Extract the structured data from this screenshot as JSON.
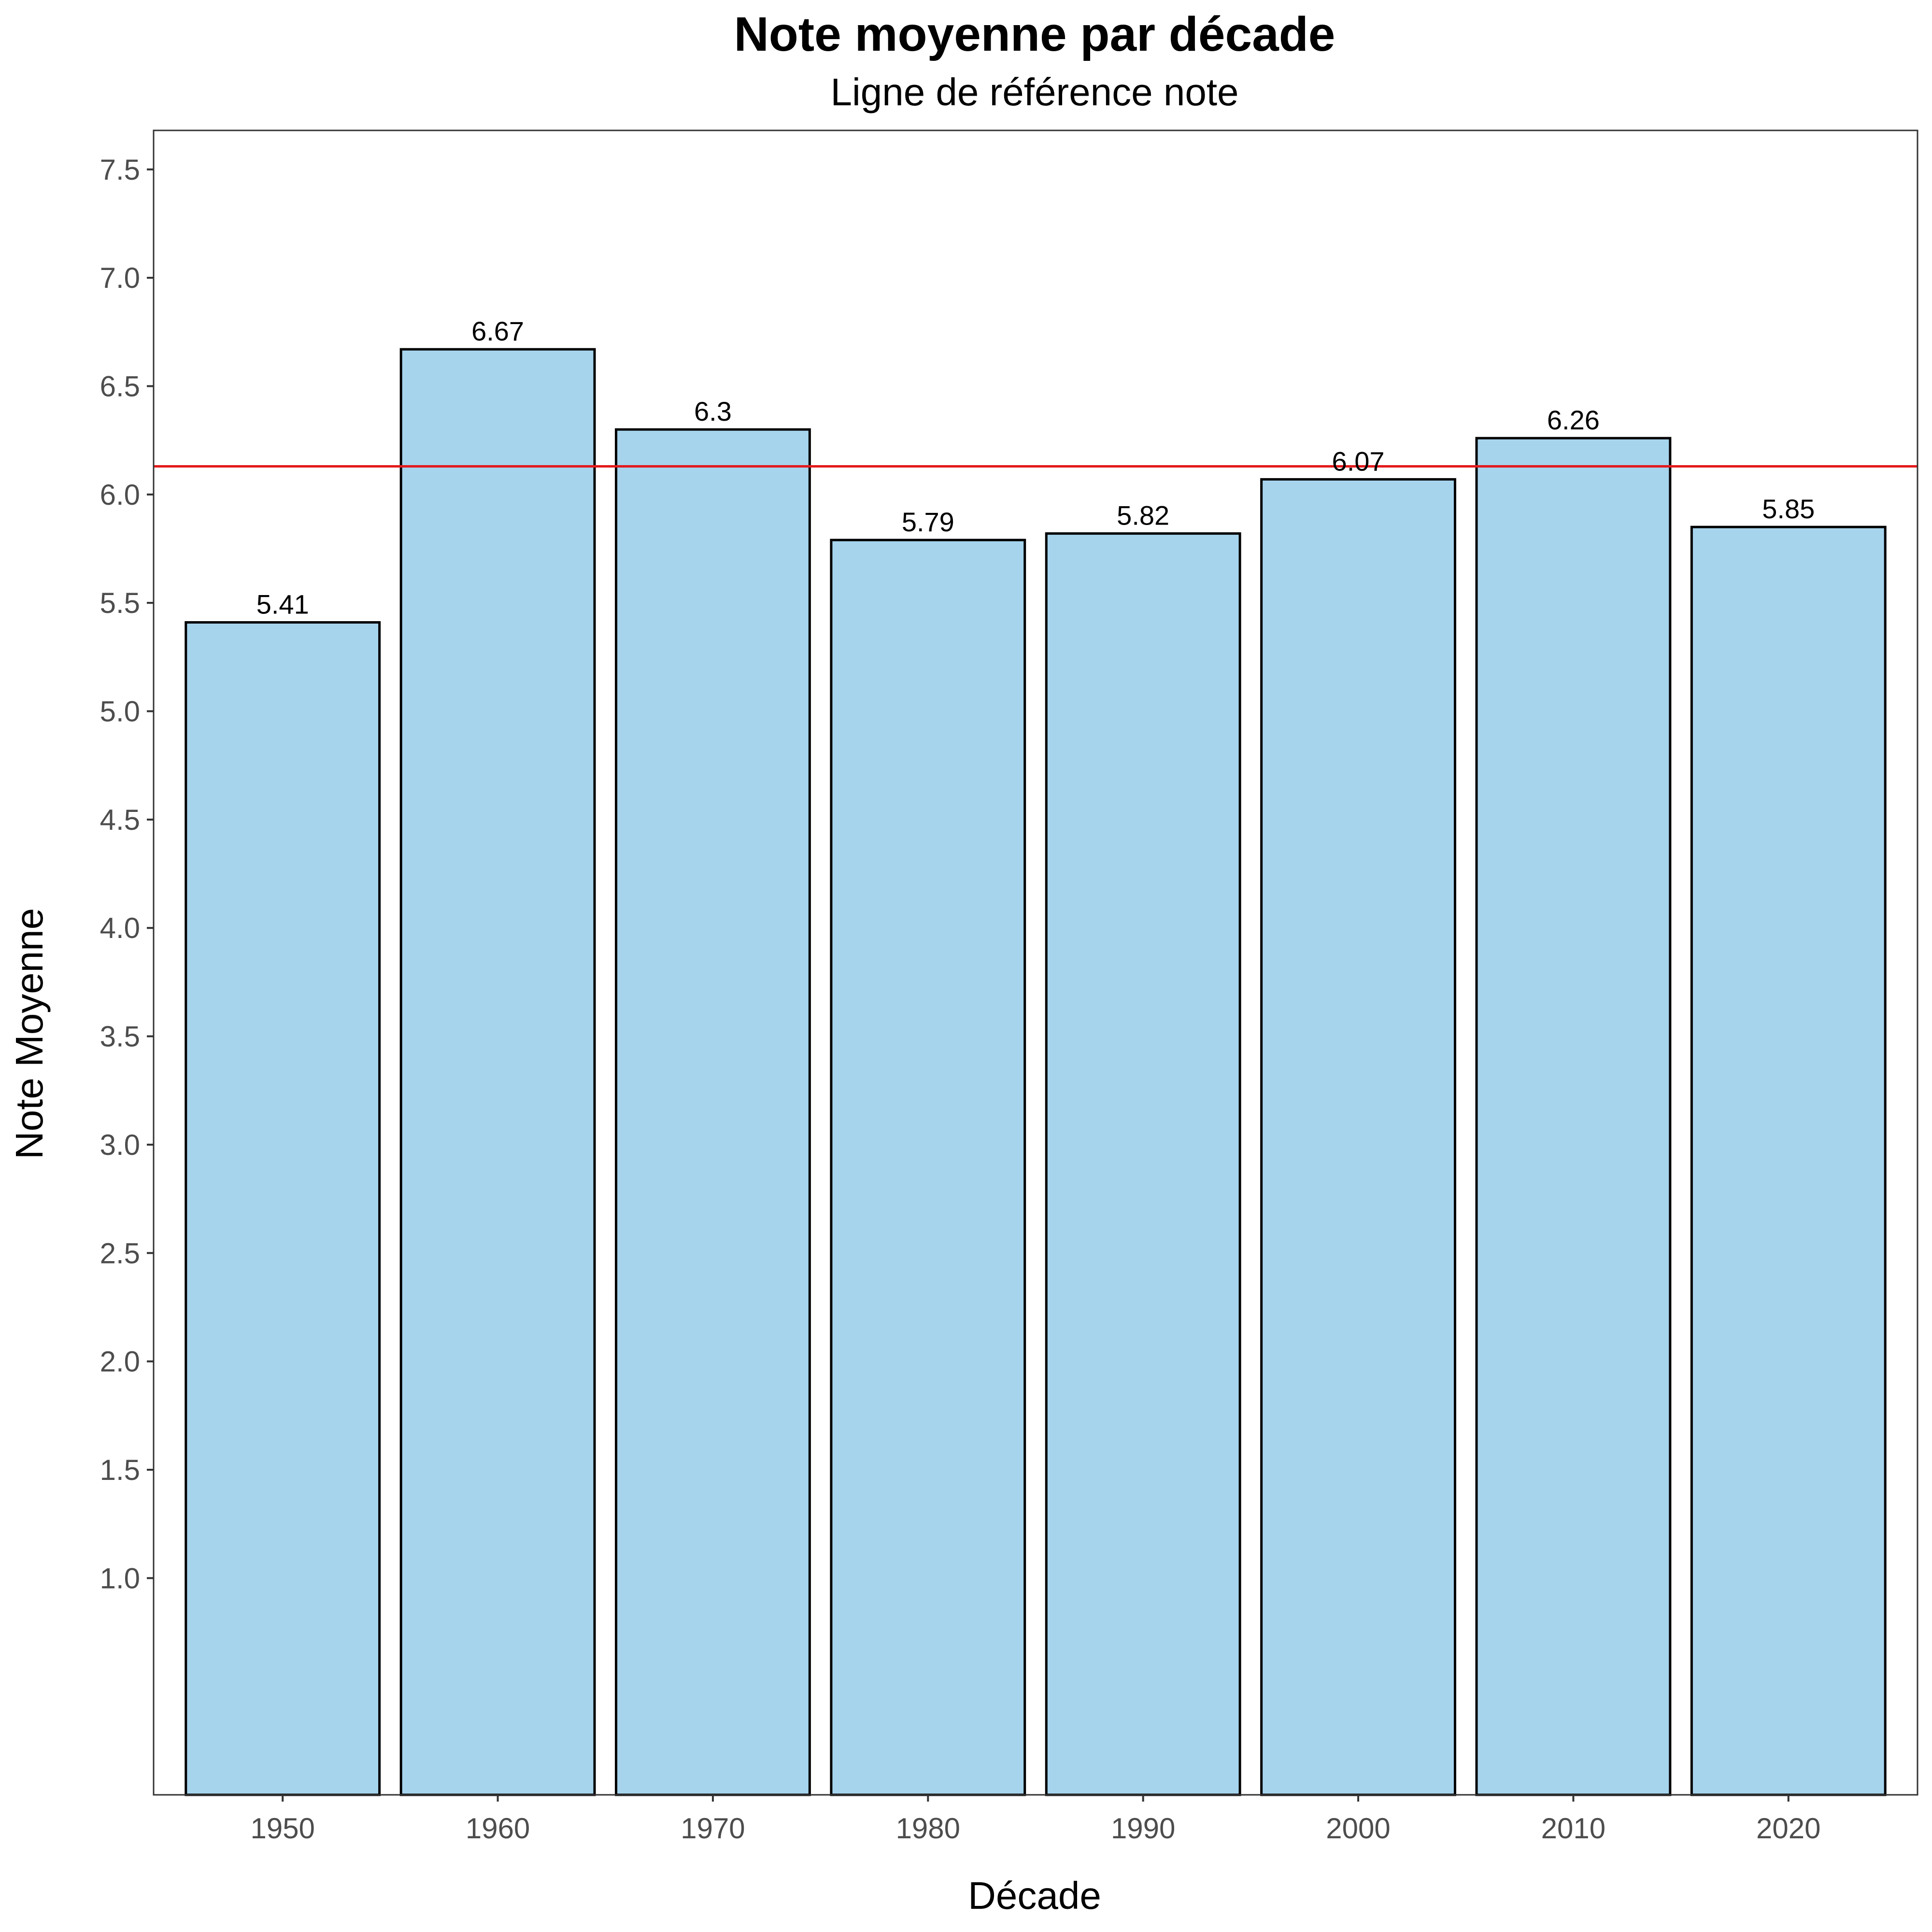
{
  "chart_data": {
    "type": "bar",
    "title": "Note moyenne par décade",
    "subtitle": "Ligne de référence note",
    "xlabel": "Décade",
    "ylabel": "Note Moyenne",
    "categories": [
      "1950",
      "1960",
      "1970",
      "1980",
      "1990",
      "2000",
      "2010",
      "2020"
    ],
    "values": [
      5.41,
      6.67,
      6.3,
      5.79,
      5.82,
      6.07,
      6.26,
      5.85
    ],
    "data_labels": [
      "5.41",
      "6.67",
      "6.3",
      "5.79",
      "5.82",
      "6.07",
      "6.26",
      "5.85"
    ],
    "yticks": [
      "1.0",
      "1.5",
      "2.0",
      "2.5",
      "3.0",
      "3.5",
      "4.0",
      "4.5",
      "5.0",
      "5.5",
      "6.0",
      "6.5",
      "7.0",
      "7.5"
    ],
    "ylim": [
      0,
      7.68
    ],
    "reference_line": 6.13,
    "grid": false,
    "legend": "none",
    "colors": {
      "bar_fill": "#a6d4ed",
      "bar_stroke": "#000000",
      "reference_line": "#e31a1c",
      "panel_border": "#333333"
    }
  }
}
